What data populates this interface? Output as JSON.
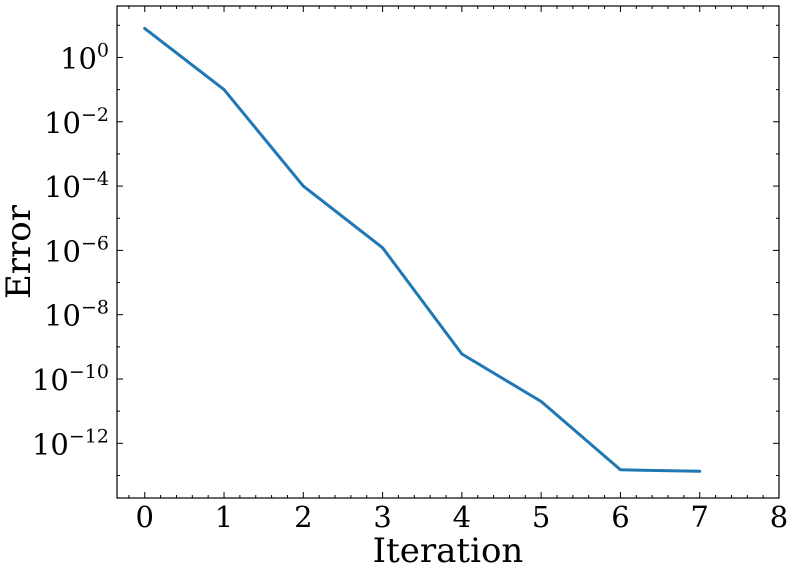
{
  "chart_data": {
    "type": "line",
    "title": "",
    "xlabel": "Iteration",
    "ylabel": "Error",
    "xlim": [
      -0.35,
      8
    ],
    "ylim_exponent": [
      -13.7,
      1.6
    ],
    "yscale": "log",
    "x_ticks": [
      0,
      1,
      2,
      3,
      4,
      5,
      6,
      7,
      8
    ],
    "y_tick_exponents": [
      0,
      -2,
      -4,
      -6,
      -8,
      -10,
      -12
    ],
    "y_tick_base": "10",
    "grid": false,
    "legend": "none",
    "series": [
      {
        "color": "#1f77b4",
        "x": [
          0,
          1,
          2,
          3,
          4,
          5,
          6,
          7
        ],
        "y": [
          8.0,
          0.1,
          0.0001,
          1.2e-06,
          6e-10,
          2e-11,
          1.5e-13,
          1.35e-13
        ]
      }
    ]
  }
}
